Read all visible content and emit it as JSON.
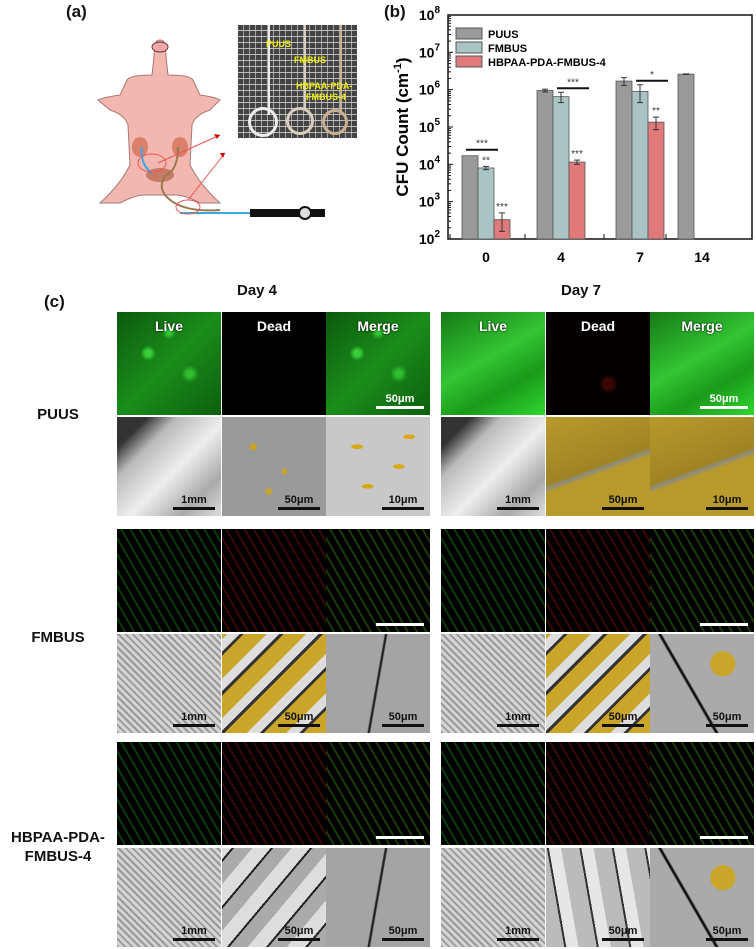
{
  "panels": {
    "a": "(a)",
    "b": "(b)",
    "c": "(c)"
  },
  "panel_a": {
    "photo_labels": [
      "PUUS",
      "FMBUS",
      "HBPAA-PDA-",
      "FMBUS-4"
    ]
  },
  "chart_data": {
    "type": "bar",
    "title": "",
    "xlabel": "",
    "ylabel": "CFU Count (cm",
    "ylabel_sup": "-1",
    "ylabel_end": ")",
    "yscale": "log",
    "ylim": [
      100,
      100000000
    ],
    "ytick_exps": [
      "2",
      "3",
      "4",
      "5",
      "6",
      "7",
      "8"
    ],
    "categories": [
      "0",
      "4",
      "7",
      "14"
    ],
    "legend_position": "top-left",
    "series": [
      {
        "name": "PUUS",
        "color": "#9a9a9a",
        "values": [
          17000,
          950000,
          1700000,
          2600000
        ],
        "errors": [
          0,
          80000,
          400000,
          50000
        ]
      },
      {
        "name": "FMBUS",
        "color": "#a9c4c2",
        "values": [
          8000,
          650000,
          900000,
          null
        ],
        "errors": [
          800,
          200000,
          450000,
          null
        ]
      },
      {
        "name": "HBPAA-PDA-FMBUS-4",
        "color": "#e07a7a",
        "values": [
          330,
          11500,
          135000,
          null
        ],
        "errors": [
          170,
          1500,
          50000,
          null
        ]
      }
    ],
    "annotations": [
      {
        "category": "0",
        "series": "FMBUS",
        "text": "**"
      },
      {
        "category": "0",
        "series": "HBPAA-PDA-FMBUS-4",
        "text": "***"
      },
      {
        "category": "0",
        "bracket": "PUUS-FMBUS",
        "text": "***"
      },
      {
        "category": "4",
        "series": "HBPAA-PDA-FMBUS-4",
        "text": "***"
      },
      {
        "category": "4",
        "bracket": "FMBUS-HBPAA",
        "text": "***"
      },
      {
        "category": "7",
        "series": "HBPAA-PDA-FMBUS-4",
        "text": "**"
      },
      {
        "category": "7",
        "bracket": "FMBUS-HBPAA",
        "text": "*"
      }
    ]
  },
  "panel_c": {
    "days": [
      "Day 4",
      "Day 7"
    ],
    "rows": [
      {
        "label": [
          "PUUS"
        ],
        "fluor": [
          [
            {
              "kind": "fluor-green",
              "text": "Live"
            },
            {
              "kind": "fluor-black",
              "text": "Dead"
            },
            {
              "kind": "fluor-green",
              "text": "Merge",
              "scale": "50μm"
            }
          ],
          [
            {
              "kind": "fluor-green-bright",
              "text": "Live"
            },
            {
              "kind": "fluor-darkred",
              "text": "Dead"
            },
            {
              "kind": "fluor-green-bright",
              "text": "Merge",
              "scale": "50μm"
            }
          ]
        ],
        "sem": [
          [
            {
              "kind": "sem-smooth",
              "scale": "1mm"
            },
            {
              "kind": "sem-bacteria",
              "scale": "50μm"
            },
            {
              "kind": "sem-rods",
              "scale": "10μm"
            }
          ],
          [
            {
              "kind": "sem-smooth",
              "scale": "1mm"
            },
            {
              "kind": "sem-yellow",
              "scale": "50μm"
            },
            {
              "kind": "sem-yellow",
              "scale": "10μm"
            }
          ]
        ]
      },
      {
        "label": [
          "FMBUS"
        ],
        "fluor": [
          [
            {
              "kind": "fluor-fibers-green"
            },
            {
              "kind": "fluor-fibers-red"
            },
            {
              "kind": "fluor-fibers-merge",
              "scale": ""
            }
          ],
          [
            {
              "kind": "fluor-fibers-green"
            },
            {
              "kind": "fluor-fibers-red"
            },
            {
              "kind": "fluor-fibers-merge",
              "scale": ""
            }
          ]
        ],
        "sem": [
          [
            {
              "kind": "sem-weave",
              "scale": "1mm"
            },
            {
              "kind": "sem-fiber-yellow",
              "scale": "50μm"
            },
            {
              "kind": "sem-crack",
              "scale": "50μm"
            }
          ],
          [
            {
              "kind": "sem-weave",
              "scale": "1mm"
            },
            {
              "kind": "sem-fiber-yellow",
              "scale": "50μm"
            },
            {
              "kind": "sem-crack-yellow",
              "scale": "50μm"
            }
          ]
        ]
      },
      {
        "label": [
          "HBPAA-PDA-",
          "FMBUS-4"
        ],
        "fluor": [
          [
            {
              "kind": "fluor-fibers-green"
            },
            {
              "kind": "fluor-fibers-red"
            },
            {
              "kind": "fluor-fibers-merge",
              "scale": ""
            }
          ],
          [
            {
              "kind": "fluor-fibers-green"
            },
            {
              "kind": "fluor-fibers-red"
            },
            {
              "kind": "fluor-fibers-merge",
              "scale": ""
            }
          ]
        ],
        "sem": [
          [
            {
              "kind": "sem-weave",
              "scale": "1mm"
            },
            {
              "kind": "sem-fiber-gray",
              "scale": "50μm"
            },
            {
              "kind": "sem-crack",
              "scale": "50μm"
            }
          ],
          [
            {
              "kind": "sem-weave",
              "scale": "1mm"
            },
            {
              "kind": "sem-fiber-vert",
              "scale": "50μm"
            },
            {
              "kind": "sem-crack-yellow",
              "scale": "50μm"
            }
          ]
        ]
      }
    ]
  }
}
